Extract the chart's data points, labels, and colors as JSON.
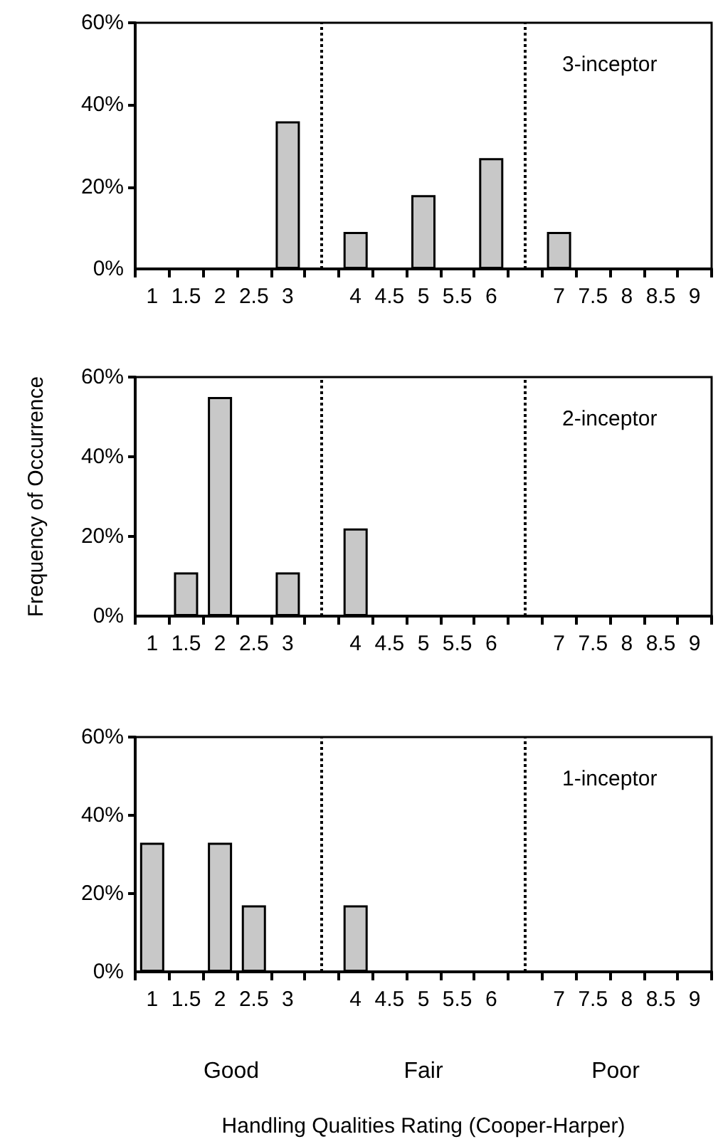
{
  "chart_data": [
    {
      "type": "bar",
      "x": [
        3,
        4,
        5,
        6,
        7
      ],
      "values": [
        36,
        9,
        18,
        27,
        9
      ],
      "color": "#c8c8c8",
      "xlim": [
        0.75,
        9.25
      ],
      "xticks": [
        {
          "value": 0.75,
          "label": null
        },
        1,
        {
          "value": 1.25,
          "label": null
        },
        1.5,
        {
          "value": 1.75,
          "label": null
        },
        2,
        {
          "value": 2.25,
          "label": null
        },
        2.5,
        {
          "value": 2.75,
          "label": null
        },
        3,
        {
          "value": 3.25,
          "label": null
        },
        {
          "value": 3.75,
          "label": null
        },
        4,
        {
          "value": 4.25,
          "label": null
        },
        4.5,
        {
          "value": 4.75,
          "label": null
        },
        5,
        {
          "value": 5.25,
          "label": null
        },
        5.5,
        {
          "value": 5.75,
          "label": null
        },
        6,
        {
          "value": 6.25,
          "label": null
        },
        {
          "value": 6.75,
          "label": null
        },
        7,
        {
          "value": 7.25,
          "label": null
        },
        7.5,
        {
          "value": 7.75,
          "label": null
        },
        8,
        {
          "value": 8.25,
          "label": null
        },
        8.5,
        {
          "value": 8.75,
          "label": null
        },
        9,
        {
          "value": 9.25,
          "label": null
        }
      ],
      "ylim": [
        0,
        60
      ],
      "yticks": [
        {
          "value": 0,
          "label": "0%"
        },
        {
          "value": 20,
          "label": "20%"
        },
        {
          "value": 40,
          "label": "40%"
        },
        {
          "value": 60,
          "label": "60%"
        }
      ],
      "ref_lines": [
        {
          "axis": "x",
          "value": 3.5,
          "line_style": "dotted"
        },
        {
          "axis": "x",
          "value": 6.5,
          "line_style": "dotted"
        }
      ],
      "annotations": [
        "3-inceptor"
      ]
    },
    {
      "type": "bar",
      "x": [
        1.5,
        2,
        3,
        4
      ],
      "values": [
        11,
        55,
        11,
        22
      ],
      "color": "#c8c8c8",
      "ylabel": "Frequency of Occurrence",
      "xlim": [
        0.75,
        9.25
      ],
      "xticks": [
        {
          "value": 0.75,
          "label": null
        },
        1,
        {
          "value": 1.25,
          "label": null
        },
        1.5,
        {
          "value": 1.75,
          "label": null
        },
        2,
        {
          "value": 2.25,
          "label": null
        },
        2.5,
        {
          "value": 2.75,
          "label": null
        },
        3,
        {
          "value": 3.25,
          "label": null
        },
        {
          "value": 3.75,
          "label": null
        },
        4,
        {
          "value": 4.25,
          "label": null
        },
        4.5,
        {
          "value": 4.75,
          "label": null
        },
        5,
        {
          "value": 5.25,
          "label": null
        },
        5.5,
        {
          "value": 5.75,
          "label": null
        },
        6,
        {
          "value": 6.25,
          "label": null
        },
        {
          "value": 6.75,
          "label": null
        },
        7,
        {
          "value": 7.25,
          "label": null
        },
        7.5,
        {
          "value": 7.75,
          "label": null
        },
        8,
        {
          "value": 8.25,
          "label": null
        },
        8.5,
        {
          "value": 8.75,
          "label": null
        },
        9,
        {
          "value": 9.25,
          "label": null
        }
      ],
      "ylim": [
        0,
        60
      ],
      "yticks": [
        {
          "value": 0,
          "label": "0%"
        },
        {
          "value": 20,
          "label": "20%"
        },
        {
          "value": 40,
          "label": "40%"
        },
        {
          "value": 60,
          "label": "60%"
        }
      ],
      "ref_lines": [
        {
          "axis": "x",
          "value": 3.5,
          "line_style": "dotted"
        },
        {
          "axis": "x",
          "value": 6.5,
          "line_style": "dotted"
        }
      ],
      "annotations": [
        "2-inceptor"
      ]
    },
    {
      "type": "bar",
      "x": [
        1,
        2,
        2.5,
        4
      ],
      "values": [
        33,
        33,
        17,
        17
      ],
      "color": "#c8c8c8",
      "xlabel": "Handling Qualities Rating (Cooper-Harper)",
      "xlim": [
        0.75,
        9.25
      ],
      "xticks": [
        {
          "value": 0.75,
          "label": null
        },
        1,
        {
          "value": 1.25,
          "label": null
        },
        1.5,
        {
          "value": 1.75,
          "label": null
        },
        2,
        {
          "value": 2.25,
          "label": null
        },
        2.5,
        {
          "value": 2.75,
          "label": null
        },
        3,
        {
          "value": 3.25,
          "label": null
        },
        {
          "value": 3.75,
          "label": null
        },
        4,
        {
          "value": 4.25,
          "label": null
        },
        4.5,
        {
          "value": 4.75,
          "label": null
        },
        5,
        {
          "value": 5.25,
          "label": null
        },
        5.5,
        {
          "value": 5.75,
          "label": null
        },
        6,
        {
          "value": 6.25,
          "label": null
        },
        {
          "value": 6.75,
          "label": null
        },
        7,
        {
          "value": 7.25,
          "label": null
        },
        7.5,
        {
          "value": 7.75,
          "label": null
        },
        8,
        {
          "value": 8.25,
          "label": null
        },
        8.5,
        {
          "value": 8.75,
          "label": null
        },
        9,
        {
          "value": 9.25,
          "label": null
        }
      ],
      "ylim": [
        0,
        60
      ],
      "yticks": [
        {
          "value": 0,
          "label": "0%"
        },
        {
          "value": 20,
          "label": "20%"
        },
        {
          "value": 40,
          "label": "40%"
        },
        {
          "value": 60,
          "label": "60%"
        }
      ],
      "ref_lines": [
        {
          "axis": "x",
          "value": 3.5,
          "line_style": "dotted"
        },
        {
          "axis": "x",
          "value": 6.5,
          "line_style": "dotted"
        }
      ],
      "annotations": [
        "1-inceptor",
        "Good",
        "Fair",
        "Poor"
      ]
    }
  ]
}
